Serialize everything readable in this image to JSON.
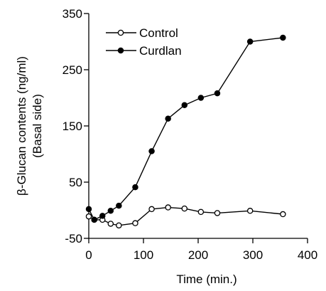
{
  "chart_data": {
    "type": "line",
    "xlabel": "Time (min.)",
    "ylabel_lines": [
      "β-Glucan contents (ng/ml)",
      "(Basal side)"
    ],
    "xlim": [
      0,
      400
    ],
    "ylim": [
      -50,
      350
    ],
    "x_ticks": [
      0,
      100,
      200,
      300,
      400
    ],
    "y_ticks": [
      -50,
      50,
      150,
      250,
      350
    ],
    "grid": false,
    "legend_position": "top-left",
    "series": [
      {
        "name": "Control",
        "marker": "open-circle",
        "color": "#000000",
        "x": [
          0,
          10,
          25,
          40,
          55,
          85,
          115,
          145,
          175,
          205,
          235,
          295,
          355
        ],
        "y": [
          -11,
          -17,
          -17,
          -24,
          -27,
          -23,
          2,
          5,
          3,
          -3,
          -5,
          -1,
          -7
        ]
      },
      {
        "name": "Curdlan",
        "marker": "filled-circle",
        "color": "#000000",
        "x": [
          0,
          10,
          25,
          40,
          55,
          85,
          115,
          145,
          175,
          205,
          235,
          295,
          355
        ],
        "y": [
          2,
          -17,
          -10,
          -1,
          8,
          41,
          105,
          163,
          187,
          200,
          208,
          300,
          307
        ]
      }
    ]
  }
}
